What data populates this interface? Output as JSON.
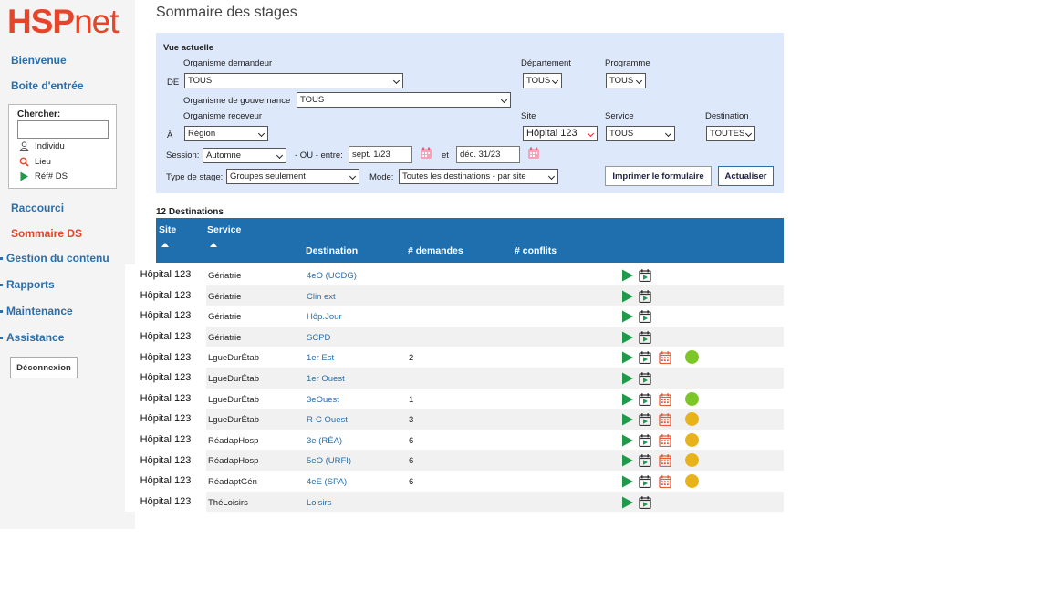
{
  "logo": {
    "prefix": "HSP",
    "suffix": "net"
  },
  "nav": {
    "welcome": "Bienvenue",
    "inbox": "Boite d'entrée",
    "search_title": "Chercher:",
    "search_value": "",
    "opt_individu": "Individu",
    "opt_lieu": "Lieu",
    "opt_ref": "Réf# DS",
    "shortcut": "Raccourci",
    "summary": "Sommaire DS",
    "content": "Gestion du contenu",
    "reports": "Rapports",
    "maintenance": "Maintenance",
    "assistance": "Assistance",
    "logout": "Déconnexion"
  },
  "page": {
    "title": "Sommaire des stages"
  },
  "filters": {
    "current_view": "Vue actuelle",
    "de": "DE",
    "a": "À",
    "org_demandeur_label": "Organisme demandeur",
    "org_demandeur": "TOUS",
    "departement_label": "Département",
    "departement": "TOUS",
    "programme_label": "Programme",
    "programme": "TOUS",
    "org_gouv_label": "Organisme de gouvernance",
    "org_gouv": "TOUS",
    "org_receveur_label": "Organisme receveur",
    "org_receveur": "Région",
    "site_label": "Site",
    "site": "Hôpital 123",
    "service_label": "Service",
    "service": "TOUS",
    "destination_label": "Destination",
    "destination": "TOUTES",
    "session_label": "Session:",
    "session": "Automne",
    "ou_label": "- OU -  entre:",
    "date_from": "sept. 1/23",
    "et_label": "et",
    "date_to": "déc. 31/23",
    "type_label": "Type de stage:",
    "type": "Groupes seulement",
    "mode_label": "Mode:",
    "mode": "Toutes les destinations - par site",
    "print_label": "Imprimer le formulaire",
    "refresh_label": "Actualiser"
  },
  "results": {
    "count_label": "12 Destinations",
    "columns": {
      "site": "Site",
      "service": "Service",
      "destination": "Destination",
      "demandes": "# demandes",
      "conflits": "# conflits"
    },
    "rows": [
      {
        "site": "Hôpital 123",
        "service": "Gériatrie",
        "destination": "4eO (UCDG)",
        "demandes": "",
        "extra": false,
        "status": ""
      },
      {
        "site": "Hôpital 123",
        "service": "Gériatrie",
        "destination": "Clin ext",
        "demandes": "",
        "extra": false,
        "status": ""
      },
      {
        "site": "Hôpital 123",
        "service": "Gériatrie",
        "destination": "Hôp.Jour",
        "demandes": "",
        "extra": false,
        "status": ""
      },
      {
        "site": "Hôpital 123",
        "service": "Gériatrie",
        "destination": "SCPD",
        "demandes": "",
        "extra": false,
        "status": ""
      },
      {
        "site": "Hôpital 123",
        "service": "LgueDurÉtab",
        "destination": "1er Est",
        "demandes": "2",
        "extra": true,
        "status": "#7cc627"
      },
      {
        "site": "Hôpital 123",
        "service": "LgueDurÉtab",
        "destination": "1er Ouest",
        "demandes": "",
        "extra": false,
        "status": ""
      },
      {
        "site": "Hôpital 123",
        "service": "LgueDurÉtab",
        "destination": "3eOuest",
        "demandes": "1",
        "extra": true,
        "status": "#7cc627"
      },
      {
        "site": "Hôpital 123",
        "service": "LgueDurÉtab",
        "destination": "R-C Ouest",
        "demandes": "3",
        "extra": true,
        "status": "#e8b21a"
      },
      {
        "site": "Hôpital 123",
        "service": "RéadapHosp",
        "destination": "3e (RÉA)",
        "demandes": "6",
        "extra": true,
        "status": "#e8b21a"
      },
      {
        "site": "Hôpital 123",
        "service": "RéadapHosp",
        "destination": "5eO (URFI)",
        "demandes": "6",
        "extra": true,
        "status": "#e8b21a"
      },
      {
        "site": "Hôpital 123",
        "service": "RéadaptGén",
        "destination": "4eE (SPA)",
        "demandes": "6",
        "extra": true,
        "status": "#e8b21a"
      },
      {
        "site": "Hôpital 123",
        "service": "ThéLoisirs",
        "destination": "Loisirs",
        "demandes": "",
        "extra": false,
        "status": ""
      }
    ]
  },
  "colors": {
    "accent": "#e4452b",
    "link": "#2a6faa",
    "header": "#1f6faf",
    "play": "#1e9a4a",
    "calendar": "#e35d3b"
  },
  "icons": [
    "play-icon",
    "calendar-play-icon",
    "calendar-icon",
    "status-dot-icon",
    "person-icon",
    "search-location-icon"
  ]
}
